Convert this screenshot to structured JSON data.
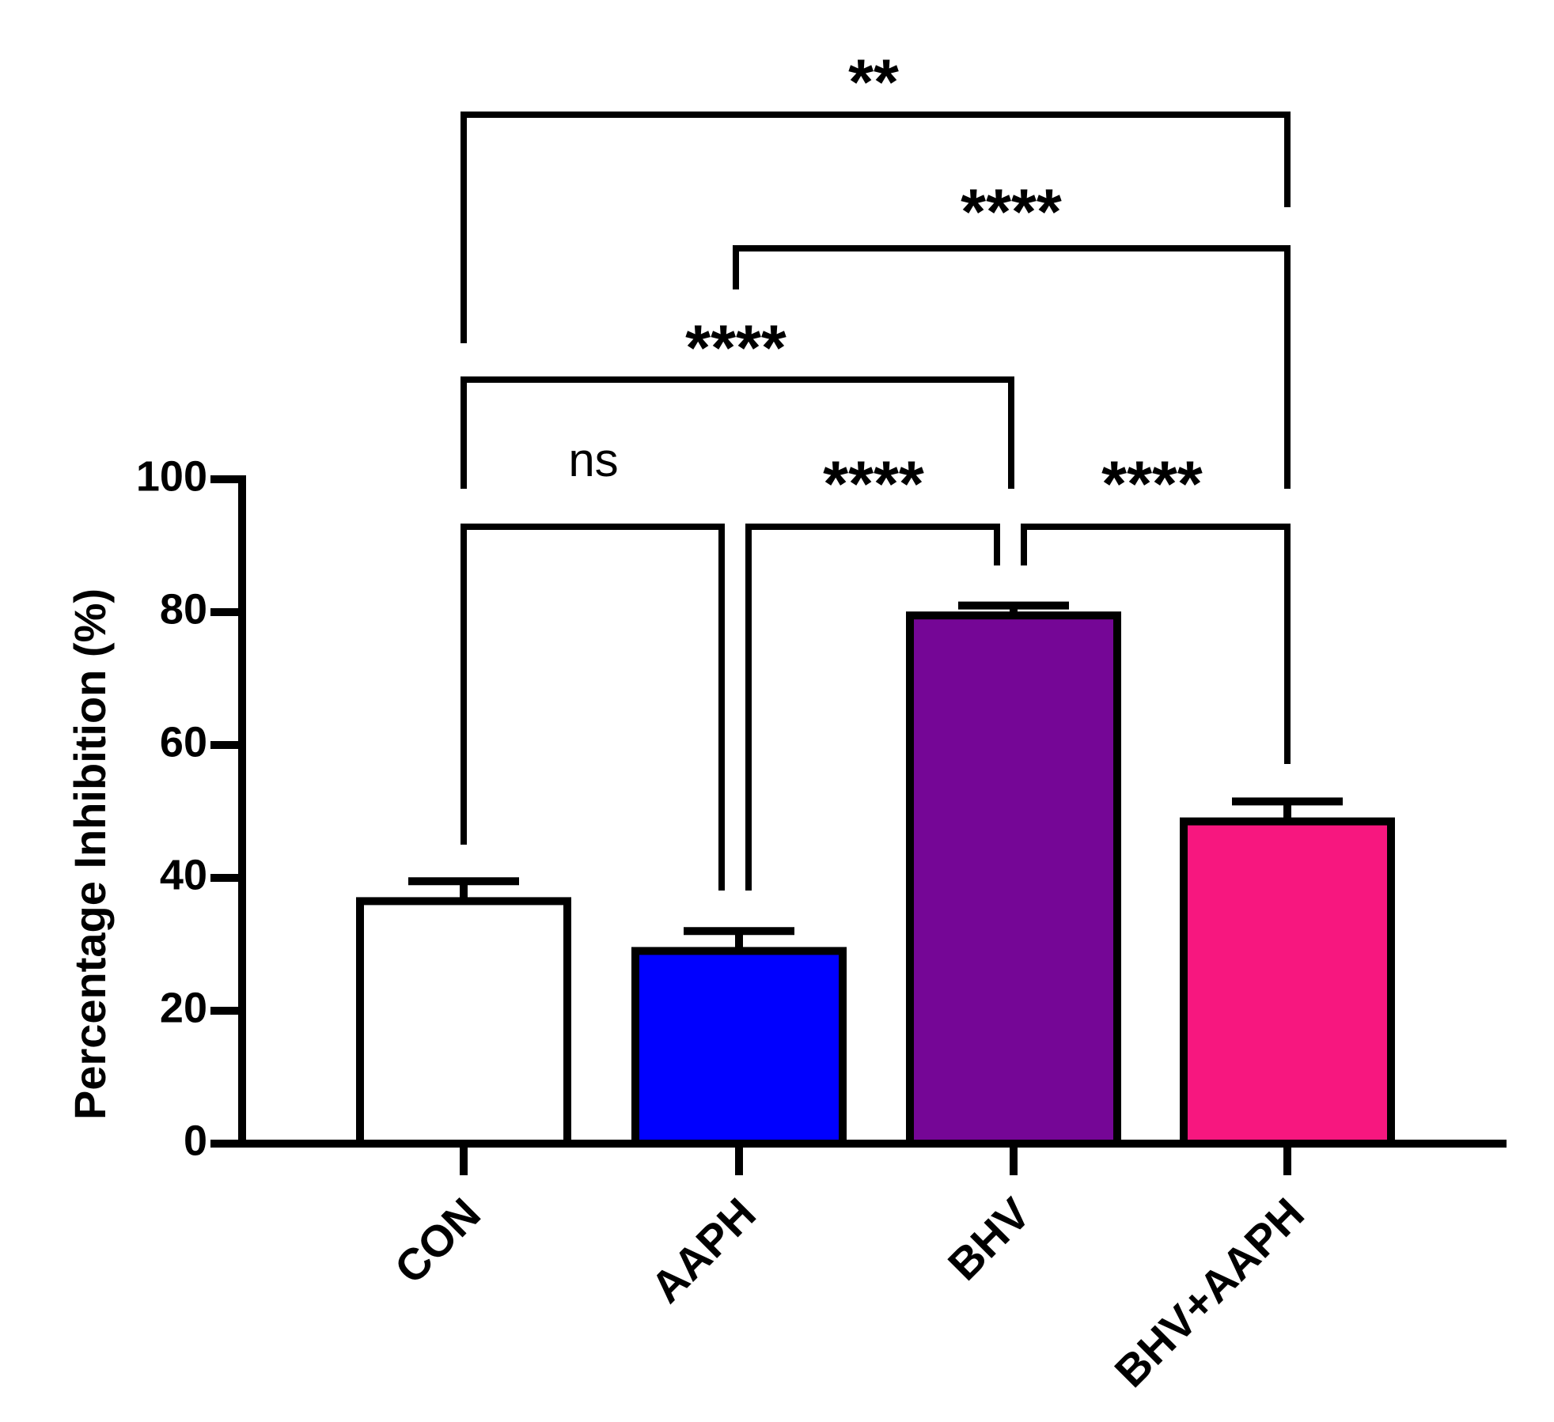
{
  "chart_data": {
    "type": "bar",
    "title": "",
    "xlabel": "",
    "ylabel": "Percentage Inhibition (%)",
    "ylim": [
      0,
      100
    ],
    "yticks": [
      0,
      20,
      40,
      60,
      80,
      100
    ],
    "grid": false,
    "categories": [
      "CON",
      "AAPH",
      "BHV",
      "BHV+AAPH"
    ],
    "values": [
      36.5,
      29,
      79.5,
      48.5
    ],
    "errors": [
      3,
      3,
      1.5,
      3
    ],
    "colors": [
      "#ffffff",
      "#0000ff",
      "#750696",
      "#f7177f"
    ],
    "comparisons": [
      {
        "from": "CON",
        "to": "AAPH",
        "label": "ns"
      },
      {
        "from": "AAPH",
        "to": "BHV",
        "label": "****"
      },
      {
        "from": "BHV",
        "to": "BHV+AAPH",
        "label": "****"
      },
      {
        "from": "CON",
        "to": "BHV",
        "label": "****"
      },
      {
        "from": "AAPH",
        "to": "BHV+AAPH",
        "label": "****"
      },
      {
        "from": "CON",
        "to": "BHV+AAPH",
        "label": "**"
      }
    ]
  }
}
